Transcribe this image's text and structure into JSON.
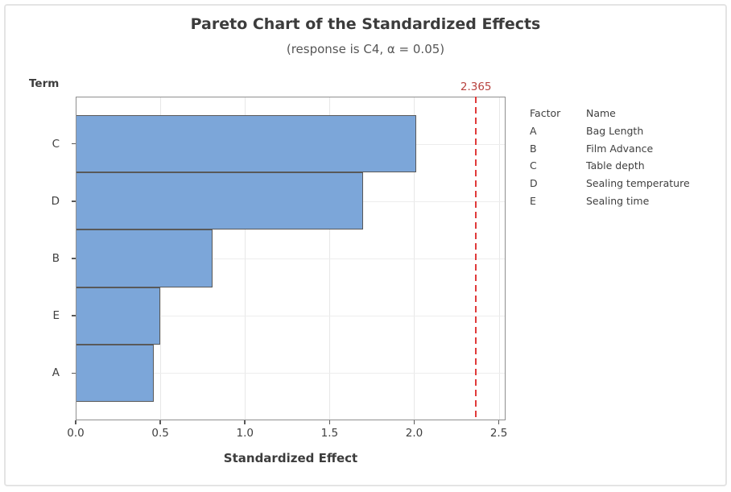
{
  "chart_data": {
    "type": "bar",
    "orientation": "horizontal",
    "title": "Pareto Chart of the Standardized Effects",
    "subtitle": "(response is C4, α = 0.05)",
    "categories": [
      "C",
      "D",
      "B",
      "E",
      "A"
    ],
    "values": [
      2.01,
      1.7,
      0.81,
      0.5,
      0.46
    ],
    "xlabel": "Standardized Effect",
    "ylabel": "Term",
    "xlim": [
      0,
      2.54
    ],
    "xticks": [
      0,
      0.5,
      1.0,
      1.5,
      2.0,
      2.5
    ],
    "xtick_labels": [
      "0.0",
      "0.5",
      "1.0",
      "1.5",
      "2.0",
      "2.5"
    ],
    "reference_line": {
      "value": 2.365,
      "label": "2.365"
    },
    "grid": true,
    "legend_position": "right"
  },
  "legend": {
    "header": {
      "factor": "Factor",
      "name": "Name"
    },
    "rows": [
      {
        "factor": "A",
        "name": "Bag Length"
      },
      {
        "factor": "B",
        "name": "Film Advance"
      },
      {
        "factor": "C",
        "name": "Table depth"
      },
      {
        "factor": "D",
        "name": "Sealing temperature"
      },
      {
        "factor": "E",
        "name": "Sealing time"
      }
    ]
  },
  "colors": {
    "bar_fill": "#7ca6d9",
    "bar_stroke": "#595959",
    "frame_stroke": "#8f8f8f",
    "gridline": "#e7e7e7",
    "reference_line": "#e03a3a",
    "reference_label": "#b8423e",
    "text": "#3c3c3c"
  }
}
